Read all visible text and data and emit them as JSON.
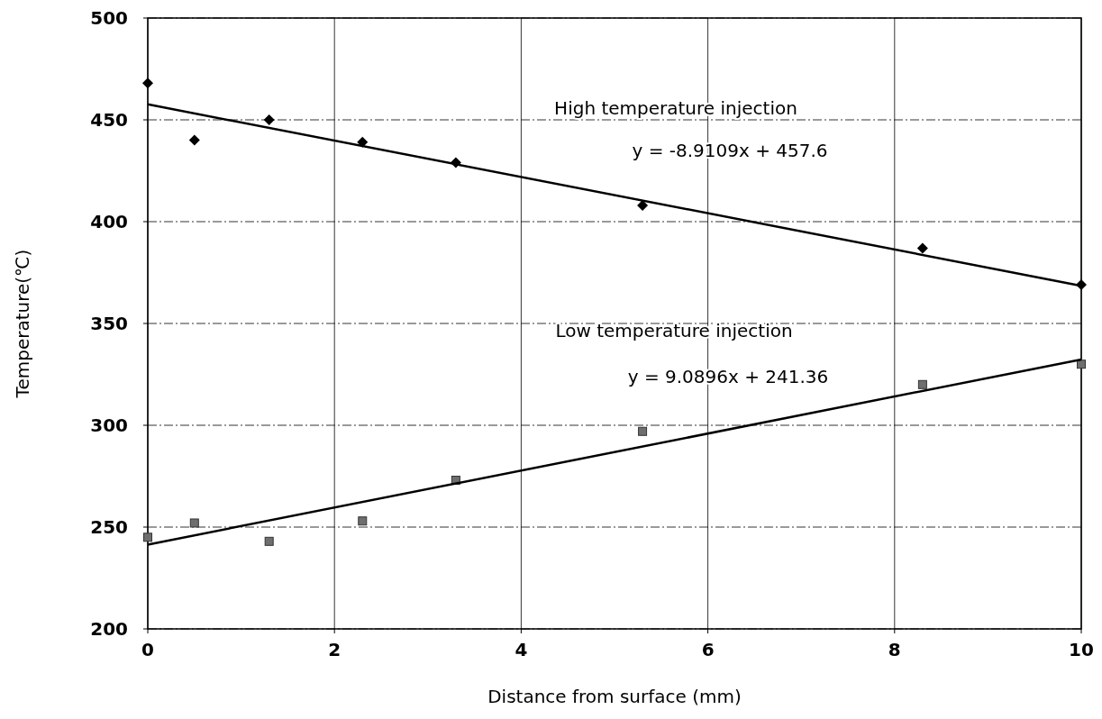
{
  "chart_data": {
    "type": "scatter",
    "xlabel": "Distance from surface (mm)",
    "ylabel": "Temperature(℃)",
    "xlim": [
      0,
      10
    ],
    "ylim": [
      200,
      500
    ],
    "xticks": [
      0,
      2,
      4,
      6,
      8,
      10
    ],
    "yticks": [
      200,
      250,
      300,
      350,
      400,
      450,
      500
    ],
    "grid": true,
    "series": [
      {
        "marker": "diamond",
        "color": "#000000",
        "x": [
          0,
          0.5,
          1.3,
          2.3,
          3.3,
          5.3,
          8.3,
          10
        ],
        "values": [
          468,
          440,
          450,
          439,
          429,
          408,
          387,
          369
        ]
      },
      {
        "marker": "square",
        "color": "#6e6e6e",
        "x": [
          0,
          0.5,
          1.3,
          2.3,
          3.3,
          5.3,
          8.3,
          10
        ],
        "values": [
          245,
          252,
          243,
          253,
          273,
          297,
          320,
          330
        ]
      },
      {
        "type": "line",
        "color": "#000000",
        "x": [
          0,
          10
        ],
        "values": [
          457.6,
          368.5
        ]
      },
      {
        "type": "line",
        "color": "#000000",
        "x": [
          0,
          10
        ],
        "values": [
          241.4,
          332.3
        ]
      }
    ],
    "annotations": [
      "High temperature injection",
      "y = -8.9109x + 457.6",
      "Low temperature injection",
      "y = 9.0896x + 241.36"
    ]
  }
}
